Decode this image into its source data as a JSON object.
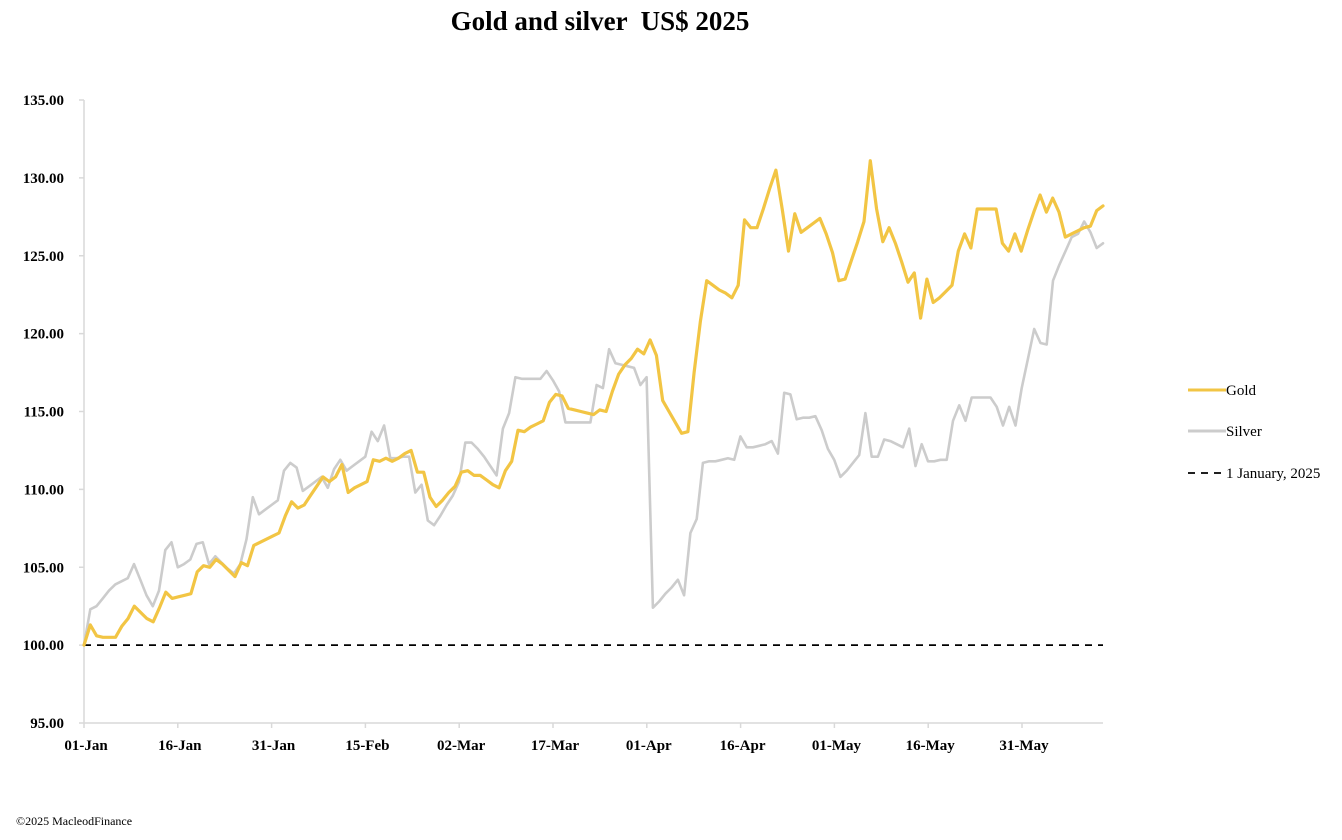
{
  "chart_data": {
    "type": "line",
    "title": "Gold and silver  US$ 2025",
    "xlabel": "",
    "ylabel": "",
    "x_range": [
      0,
      109
    ],
    "ylim": [
      95,
      135
    ],
    "y_ticks": [
      "95.00",
      "100.00",
      "105.00",
      "110.00",
      "115.00",
      "120.00",
      "125.00",
      "130.00",
      "135.00"
    ],
    "x_ticks": [
      {
        "label": "01-Jan",
        "index": 0
      },
      {
        "label": "16-Jan",
        "index": 10
      },
      {
        "label": "31-Jan",
        "index": 20
      },
      {
        "label": "15-Feb",
        "index": 30
      },
      {
        "label": "02-Mar",
        "index": 40
      },
      {
        "label": "17-Mar",
        "index": 50
      },
      {
        "label": "01-Apr",
        "index": 60
      },
      {
        "label": "16-Apr",
        "index": 70
      },
      {
        "label": "01-May",
        "index": 80
      },
      {
        "label": "16-May",
        "index": 90
      },
      {
        "label": "31-May",
        "index": 100
      }
    ],
    "grid": false,
    "legend_position": "right",
    "series": [
      {
        "name": "Gold",
        "color": "#F2C544",
        "style": "solid",
        "values": [
          100.0,
          101.3,
          100.6,
          100.5,
          100.5,
          100.5,
          101.2,
          101.7,
          102.5,
          102.1,
          101.7,
          101.5,
          102.4,
          103.4,
          103.0,
          103.1,
          103.2,
          103.3,
          104.7,
          105.1,
          105.0,
          105.5,
          105.2,
          104.8,
          104.4,
          105.3,
          105.1,
          106.4,
          106.6,
          106.8,
          107.0,
          107.2,
          108.3,
          109.2,
          108.8,
          109.0,
          109.6,
          110.2,
          110.8,
          110.5,
          110.8,
          111.6,
          109.8,
          110.1,
          110.3,
          110.5,
          111.9,
          111.8,
          112.0,
          111.8,
          112.0,
          112.3,
          112.5,
          111.1,
          111.1,
          109.5,
          108.9,
          109.3,
          109.8,
          110.2,
          111.1,
          111.2,
          110.9,
          110.9,
          110.6,
          110.3,
          110.1,
          111.2,
          111.8,
          113.8,
          113.7,
          114.0,
          114.2,
          114.4,
          115.6,
          116.1,
          116.0,
          115.2,
          115.1,
          115.0,
          114.9,
          114.8,
          115.1,
          115.0,
          116.3,
          117.4,
          118.0,
          118.4,
          119.0,
          118.7,
          119.6,
          118.6,
          115.7,
          115.0,
          114.3,
          113.6,
          113.7,
          117.5,
          120.8,
          123.4,
          123.1,
          122.8,
          122.6,
          122.3,
          123.1,
          127.3,
          126.8,
          126.8,
          128.0,
          129.3,
          130.5,
          128.0,
          125.3,
          127.7,
          126.5,
          126.8,
          127.1,
          127.4,
          126.4,
          125.2,
          123.4,
          123.5,
          124.7,
          125.9,
          127.2,
          131.1,
          128.0,
          125.9,
          126.8,
          125.8,
          124.6,
          123.3,
          123.9,
          121.0,
          123.5,
          122.0,
          122.3,
          122.7,
          123.1,
          125.3,
          126.4,
          125.5,
          128.0,
          128.0,
          128.0,
          128.0,
          125.8,
          125.3,
          126.4,
          125.3,
          126.6,
          127.8,
          128.9,
          127.8,
          128.7,
          127.8,
          126.2,
          126.4,
          126.6,
          126.8,
          126.9,
          127.9,
          128.2
        ]
      },
      {
        "name": "Silver",
        "color": "#CCCCCC",
        "style": "solid",
        "values": [
          100.0,
          102.3,
          102.5,
          103.0,
          103.5,
          103.9,
          104.1,
          104.3,
          105.2,
          104.2,
          103.2,
          102.5,
          103.5,
          106.1,
          106.6,
          105.0,
          105.2,
          105.5,
          106.5,
          106.6,
          105.2,
          105.7,
          105.3,
          104.9,
          104.6,
          105.2,
          106.8,
          109.5,
          108.4,
          108.7,
          109.0,
          109.3,
          111.2,
          111.7,
          111.4,
          109.9,
          110.2,
          110.5,
          110.8,
          110.1,
          111.3,
          111.9,
          111.2,
          111.5,
          111.8,
          112.1,
          113.7,
          113.1,
          114.1,
          112.0,
          112.0,
          112.1,
          112.1,
          109.8,
          110.3,
          108.0,
          107.7,
          108.3,
          109.0,
          109.6,
          110.5,
          113.0,
          113.0,
          112.6,
          112.1,
          111.5,
          110.9,
          113.9,
          114.9,
          117.2,
          117.1,
          117.1,
          117.1,
          117.1,
          117.6,
          117.0,
          116.3,
          114.3,
          114.3,
          114.3,
          114.3,
          114.3,
          116.7,
          116.5,
          119.0,
          118.1,
          118.0,
          117.9,
          117.8,
          116.7,
          117.2,
          102.4,
          102.8,
          103.3,
          103.7,
          104.2,
          103.2,
          107.2,
          108.1,
          111.7,
          111.8,
          111.8,
          111.9,
          112.0,
          111.9,
          113.4,
          112.7,
          112.7,
          112.8,
          112.9,
          113.1,
          112.3,
          116.2,
          116.1,
          114.5,
          114.6,
          114.6,
          114.7,
          113.8,
          112.6,
          111.9,
          110.8,
          111.2,
          111.7,
          112.2,
          114.9,
          112.1,
          112.1,
          113.2,
          113.1,
          112.9,
          112.7,
          113.9,
          111.5,
          112.9,
          111.8,
          111.8,
          111.9,
          111.9,
          114.4,
          115.4,
          114.4,
          115.9,
          115.9,
          115.9,
          115.9,
          115.3,
          114.1,
          115.3,
          114.1,
          116.5,
          118.4,
          120.3,
          119.4,
          119.3,
          123.4,
          124.4,
          125.3,
          126.2,
          126.4,
          127.2,
          126.5,
          125.5,
          125.8
        ]
      },
      {
        "name": "1 January, 2025",
        "color": "#000000",
        "style": "dashed",
        "values": [
          100.0,
          100.0
        ]
      }
    ]
  },
  "footer": {
    "copyright": "©2025 MacleodFinance"
  }
}
